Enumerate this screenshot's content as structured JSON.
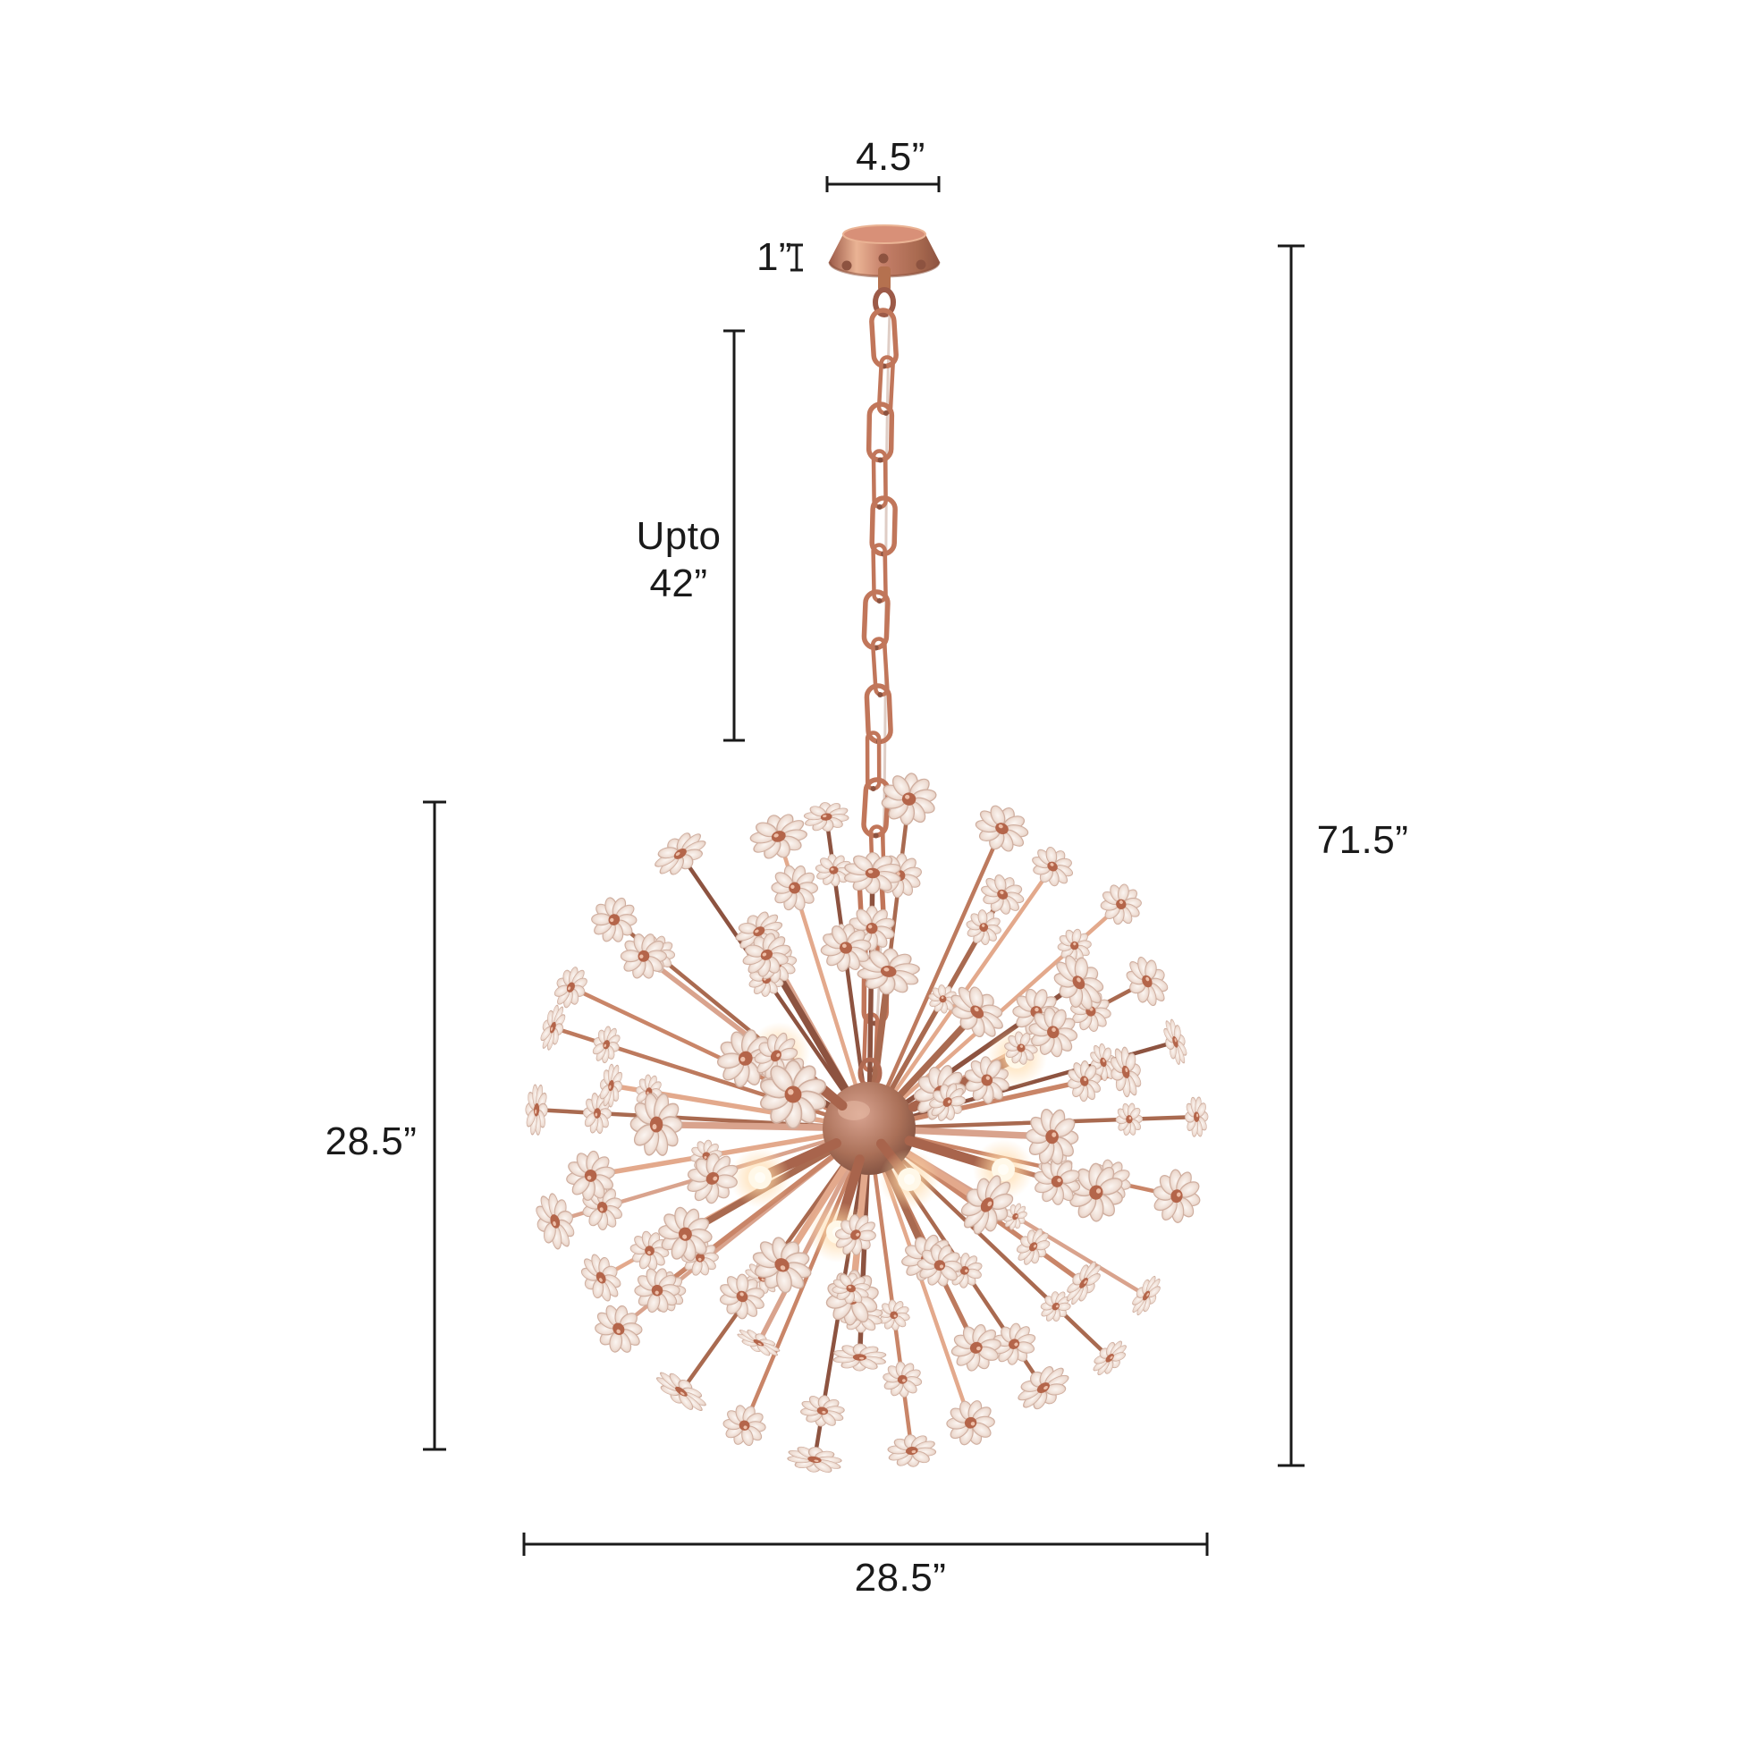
{
  "diagram": {
    "kind": "product-dimension-diagram",
    "labels": {
      "canopy_width": "4.5”",
      "canopy_height": "1”",
      "chain_line1": "Upto",
      "chain_line2": "42”",
      "overall_height": "71.5”",
      "fixture_height": "28.5”",
      "fixture_width": "28.5”"
    }
  },
  "colors": {
    "background": "#ffffff",
    "dimension": "#1a1a1a",
    "copper": "#bd7a5e",
    "copper_light": "#e3a98c",
    "copper_dark": "#8d5340",
    "copper_deep": "#a96a50",
    "hub_dark": "#6e4336",
    "crystal": "#f5eae4",
    "crystal_edge": "#cfae9f",
    "flower_center": "#b4654a",
    "bulb_core": "#fff8e8",
    "bulb_glow": "#ffd9a6",
    "chain": "#c1765a",
    "cord": "#dfcdc5"
  }
}
